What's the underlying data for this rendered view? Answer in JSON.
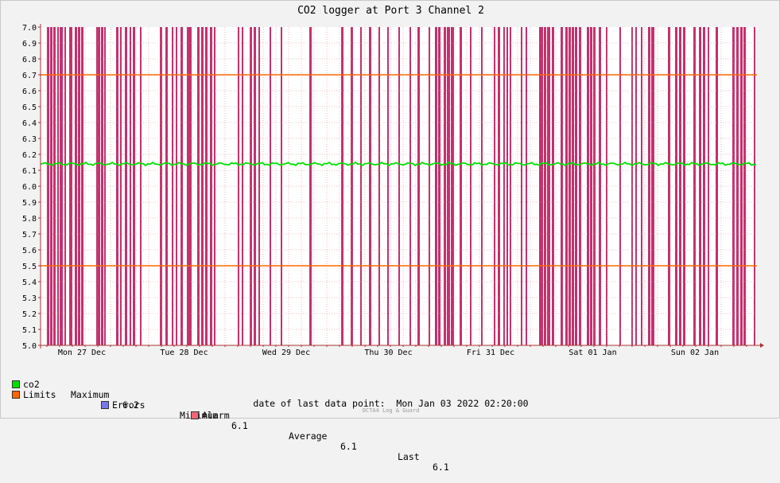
{
  "chart_data": {
    "type": "line",
    "title": "CO2 logger at Port 3 Channel 2",
    "ylim": [
      5.0,
      7.0
    ],
    "yticks": [
      "5.0",
      "5.1",
      "5.2",
      "5.3",
      "5.4",
      "5.5",
      "5.6",
      "5.7",
      "5.8",
      "5.9",
      "6.0",
      "6.1",
      "6.2",
      "6.3",
      "6.4",
      "6.5",
      "6.6",
      "6.7",
      "6.8",
      "6.9",
      "7.0"
    ],
    "xticks": [
      "Mon 27 Dec",
      "Tue 28 Dec",
      "Wed 29 Dec",
      "Thu 30 Dec",
      "Fri 31 Dec",
      "Sat 01 Jan",
      "Sun 02 Jan"
    ],
    "series": [
      {
        "name": "co2",
        "color": "#00e000",
        "value": 6.14
      }
    ],
    "limits": {
      "upper": 6.7,
      "lower": 5.5,
      "color": "#ff6600"
    },
    "alarm_color": "#c3306f",
    "grid": true
  },
  "legend": {
    "co2": "co2",
    "max_label": "Maximum",
    "max": "6.2",
    "min_label": "Minimum",
    "min": "6.1",
    "avg_label": "Average",
    "avg": "6.1",
    "last_label": "Last",
    "last": "6.1",
    "limits": "Limits",
    "errors": "Errors",
    "alarm": "Alarm",
    "co2_color": "#00e000",
    "limits_color": "#ff6600",
    "errors_color": "#7777ee",
    "alarm_color": "#ee6677"
  },
  "footer": {
    "last_point_label": "date of last data point:",
    "last_point_value": "Mon Jan 03 2022 02:20:00"
  },
  "watermark": "OCTA4 Log & Guard"
}
